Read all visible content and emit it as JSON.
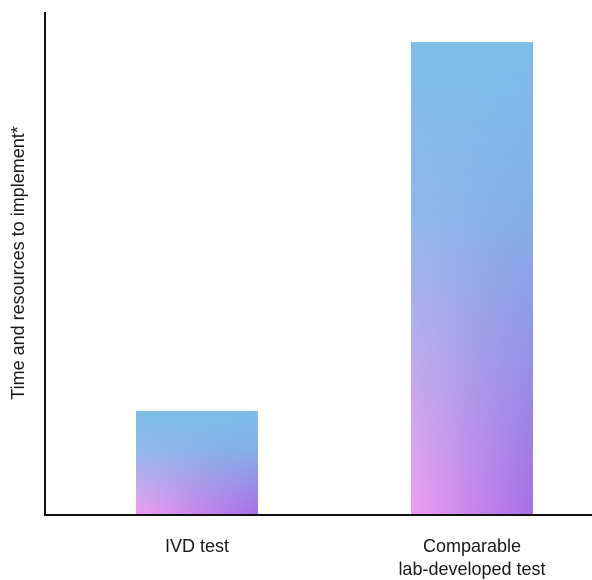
{
  "chart_data": {
    "type": "bar",
    "categories": [
      "IVD test",
      "Comparable\nlab-developed test"
    ],
    "values": [
      22,
      100
    ],
    "ylim": [
      0,
      100
    ],
    "xlabel": "",
    "ylabel": "Time and resources to implement*",
    "grid": false,
    "legend": "none",
    "bar_gradient": {
      "top": "#7dbde8",
      "bottom_left": "#ee9ef0",
      "bottom_right": "#a76ee6"
    },
    "axis_color": "#111111"
  }
}
